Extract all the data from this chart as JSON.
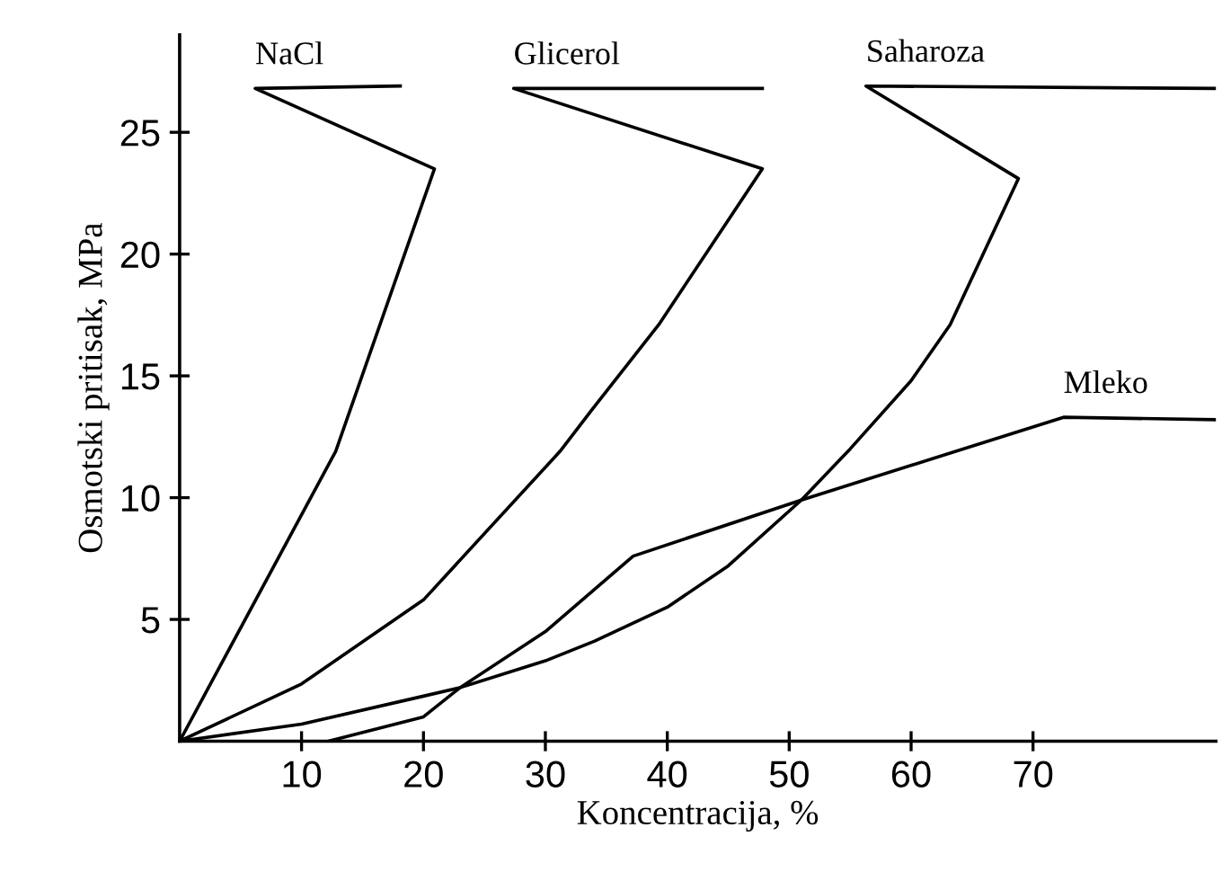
{
  "chart_data": {
    "type": "line",
    "xlabel": "Koncentracija, %",
    "ylabel": "Osmotski pritisak, MPa",
    "xlim": [
      0,
      85
    ],
    "ylim": [
      0,
      29
    ],
    "xticks": [
      10,
      20,
      30,
      40,
      50,
      60,
      70
    ],
    "yticks": [
      5,
      10,
      15,
      20,
      25
    ],
    "grid": false,
    "marker": "none",
    "line_style": "solid",
    "series": [
      {
        "name": "NaCl",
        "color": "#000000",
        "x": [
          0,
          12.8,
          20.9,
          6.2,
          18.1
        ],
        "values": [
          0,
          11.9,
          23.5,
          26.8,
          26.9
        ]
      },
      {
        "name": "Glicerol",
        "color": "#000000",
        "x": [
          0,
          10,
          20,
          31.2,
          33.8,
          39.3,
          47.8,
          27.4,
          47.8
        ],
        "values": [
          0,
          2.35,
          5.8,
          11.9,
          13.6,
          17.1,
          23.5,
          26.8,
          26.8
        ]
      },
      {
        "name": "Saharoza",
        "color": "#000000",
        "x": [
          12.2,
          20,
          23,
          30,
          34,
          40,
          45,
          51,
          55,
          60,
          63.2,
          68.8,
          56.3,
          85
        ],
        "values": [
          0,
          1.0,
          2.2,
          3.3,
          4.1,
          5.5,
          7.2,
          9.9,
          12,
          14.8,
          17.1,
          23.1,
          26.9,
          26.8
        ]
      },
      {
        "name": "Mleko",
        "color": "#000000",
        "x": [
          0,
          10,
          20,
          23,
          30,
          37.2,
          51,
          72.5,
          85
        ],
        "values": [
          0,
          0.7,
          1.85,
          2.2,
          4.5,
          7.6,
          9.9,
          13.3,
          13.2
        ]
      }
    ]
  }
}
